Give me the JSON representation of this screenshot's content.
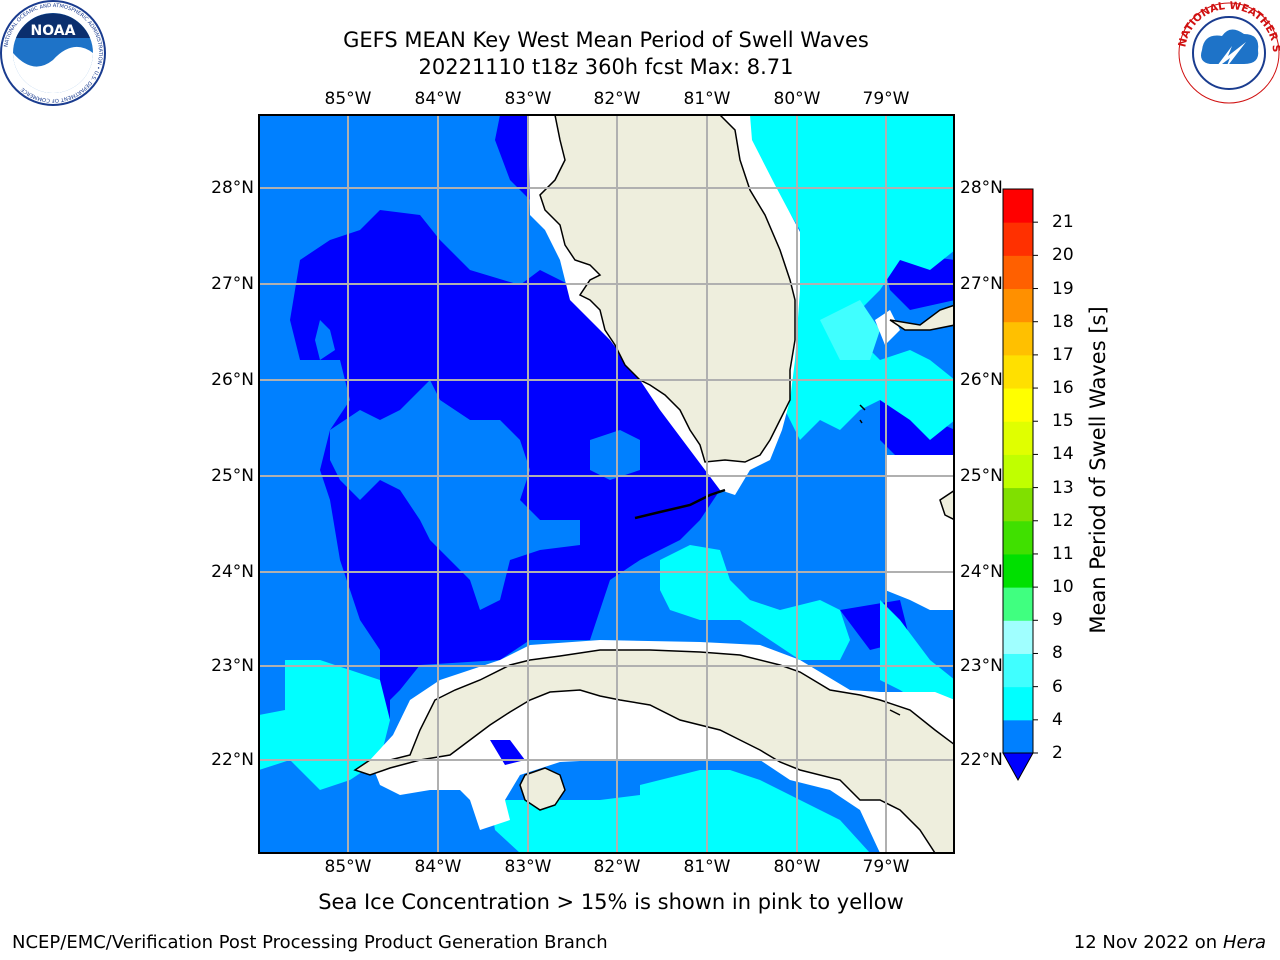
{
  "title": {
    "line1": "GEFS MEAN Key West Mean Period of Swell Waves",
    "line2": "20221110 t18z 360h fcst   Max: 8.71"
  },
  "map": {
    "lon_labels": [
      "85°W",
      "84°W",
      "83°W",
      "82°W",
      "81°W",
      "80°W",
      "79°W"
    ],
    "lat_labels": [
      "28°N",
      "27°N",
      "26°N",
      "25°N",
      "24°N",
      "23°N",
      "22°N"
    ],
    "land_color": "#eeeedd",
    "ocean_colors": {
      "lt2": "#0000ff",
      "2to4": "#0080ff",
      "4to6": "#00ffff",
      "6to8": "#40ffff"
    }
  },
  "colorbar": {
    "label": "Mean Period of Swell Waves [s]",
    "ticks": [
      "2",
      "4",
      "6",
      "8",
      "9",
      "10",
      "11",
      "12",
      "13",
      "14",
      "15",
      "16",
      "17",
      "18",
      "19",
      "20",
      "21"
    ],
    "colors": [
      "#0080ff",
      "#00ffff",
      "#40ffff",
      "#a0ffff",
      "#40ff80",
      "#00e000",
      "#40e000",
      "#80e000",
      "#c0ff00",
      "#e0ff00",
      "#ffff00",
      "#ffe000",
      "#ffc000",
      "#ff9000",
      "#ff6000",
      "#ff3000",
      "#ff0000"
    ],
    "under_color": "#0000ff"
  },
  "footer": {
    "note": "Sea Ice Concentration > 15% is shown in pink to yellow",
    "left": "NCEP/EMC/Verification Post Processing Product Generation Branch",
    "date": "12 Nov 2022 on",
    "host": "Hera"
  },
  "logos": {
    "left_text": "NOAA",
    "left_ring": "NATIONAL OCEANIC AND ATMOSPHERIC ADMINISTRATION • U.S. DEPARTMENT OF COMMERCE",
    "right_ring": "NATIONAL WEATHER SERVICE"
  }
}
